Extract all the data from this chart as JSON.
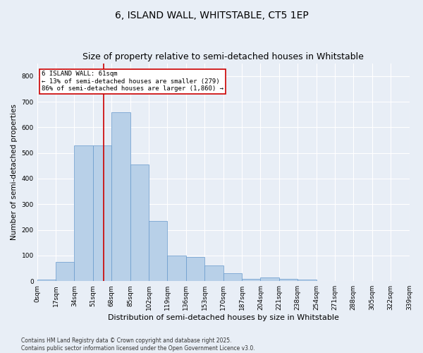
{
  "title": "6, ISLAND WALL, WHITSTABLE, CT5 1EP",
  "subtitle": "Size of property relative to semi-detached houses in Whitstable",
  "xlabel": "Distribution of semi-detached houses by size in Whitstable",
  "ylabel": "Number of semi-detached properties",
  "bin_labels": [
    "0sqm",
    "17sqm",
    "34sqm",
    "51sqm",
    "68sqm",
    "85sqm",
    "102sqm",
    "119sqm",
    "136sqm",
    "153sqm",
    "170sqm",
    "187sqm",
    "204sqm",
    "221sqm",
    "238sqm",
    "254sqm",
    "271sqm",
    "288sqm",
    "305sqm",
    "322sqm",
    "339sqm"
  ],
  "bar_values": [
    5,
    75,
    530,
    530,
    660,
    455,
    235,
    100,
    95,
    60,
    30,
    10,
    15,
    10,
    5,
    0,
    0,
    0,
    0,
    0
  ],
  "bar_color": "#b8d0e8",
  "bar_edge_color": "#6699cc",
  "vline_color": "#cc0000",
  "annotation_text": "6 ISLAND WALL: 61sqm\n← 13% of semi-detached houses are smaller (279)\n86% of semi-detached houses are larger (1,860) →",
  "annotation_box_color": "#ffffff",
  "annotation_box_edge": "#cc0000",
  "ylim": [
    0,
    850
  ],
  "yticks": [
    0,
    100,
    200,
    300,
    400,
    500,
    600,
    700,
    800
  ],
  "footnote": "Contains HM Land Registry data © Crown copyright and database right 2025.\nContains public sector information licensed under the Open Government Licence v3.0.",
  "bg_color": "#e8eef6",
  "plot_bg_color": "#e8eef6",
  "title_fontsize": 10,
  "tick_fontsize": 6.5,
  "ylabel_fontsize": 7.5,
  "xlabel_fontsize": 8,
  "annotation_fontsize": 6.5,
  "bin_width": 17,
  "property_line_x": 61
}
